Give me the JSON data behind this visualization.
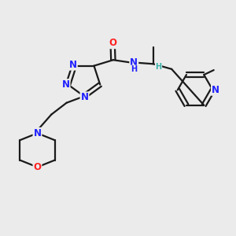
{
  "bg_color": "#ebebeb",
  "bond_color": "#1a1a1a",
  "N_color": "#2020ff",
  "O_color": "#ff2020",
  "H_color": "#3aafa9",
  "figsize": [
    3.0,
    3.0
  ],
  "dpi": 100,
  "xlim": [
    0,
    10
  ],
  "ylim": [
    0,
    10
  ]
}
